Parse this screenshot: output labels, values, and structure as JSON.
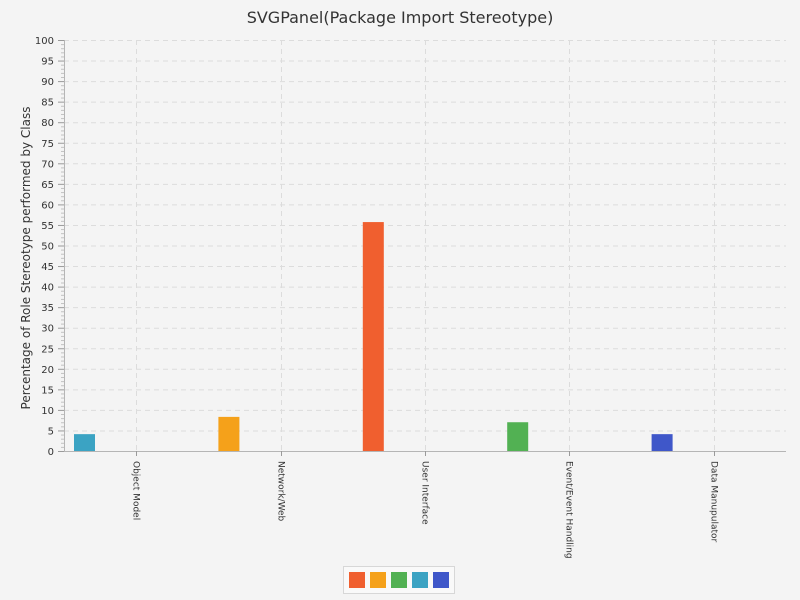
{
  "chart_data": {
    "type": "bar",
    "title": "SVGPanel(Package Import Stereotype)",
    "ylabel": "Percentage of Role Stereotype performed by Class",
    "xlabel": "",
    "categories": [
      "Object Model",
      "Network/Web",
      "User Interface",
      "Event/Event Handling",
      "Data Manupulator"
    ],
    "series": [
      {
        "values": [
          4.1,
          0,
          0,
          0,
          0
        ]
      },
      {
        "values": [
          0,
          8.3,
          0,
          0,
          0
        ]
      },
      {
        "values": [
          0,
          0,
          55.7,
          0,
          0
        ]
      },
      {
        "values": [
          0,
          0,
          0,
          7.0,
          0
        ]
      },
      {
        "values": [
          0,
          0,
          0,
          0,
          4.1
        ]
      }
    ],
    "bar_colors": [
      "#3ba3c3",
      "#f5a11a",
      "#f05f2f",
      "#52b153",
      "#3f57c9"
    ],
    "ylim": [
      0,
      100
    ],
    "yticks": [
      0,
      5,
      10,
      15,
      20,
      25,
      30,
      35,
      40,
      45,
      50,
      55,
      60,
      65,
      70,
      75,
      80,
      85,
      90,
      95,
      100
    ],
    "grid": true,
    "legend": {
      "placement": "bottom-center",
      "colors": [
        "#f05f2f",
        "#f5a11a",
        "#52b153",
        "#3ba3c3",
        "#3f57c9"
      ]
    }
  }
}
